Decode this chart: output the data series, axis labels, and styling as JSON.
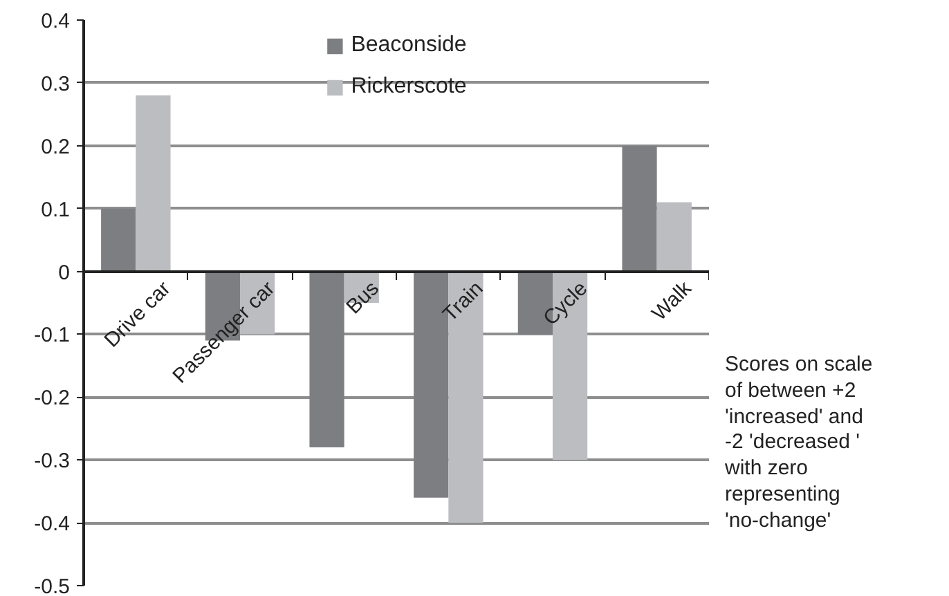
{
  "chart_data": {
    "type": "bar",
    "categories": [
      "Drive car",
      "Passenger car",
      "Bus",
      "Train",
      "Cycle",
      "Walk"
    ],
    "series": [
      {
        "name": "Beaconside",
        "color": "#7d7e82",
        "values": [
          0.1,
          -0.11,
          -0.28,
          -0.36,
          -0.1,
          0.2
        ]
      },
      {
        "name": "Rickerscote",
        "color": "#bcbdc1",
        "values": [
          0.28,
          -0.1,
          -0.05,
          -0.4,
          -0.3,
          0.11
        ]
      }
    ],
    "ylim": [
      -0.5,
      0.4
    ],
    "yticks": [
      -0.5,
      -0.4,
      -0.3,
      -0.2,
      -0.1,
      0,
      0.1,
      0.2,
      0.3,
      0.4
    ],
    "grid": "y",
    "legend": "top",
    "annotations": [
      "Scores on scale of between +2 'increased' and -2 'decreased ' with zero representing 'no-change'"
    ]
  }
}
